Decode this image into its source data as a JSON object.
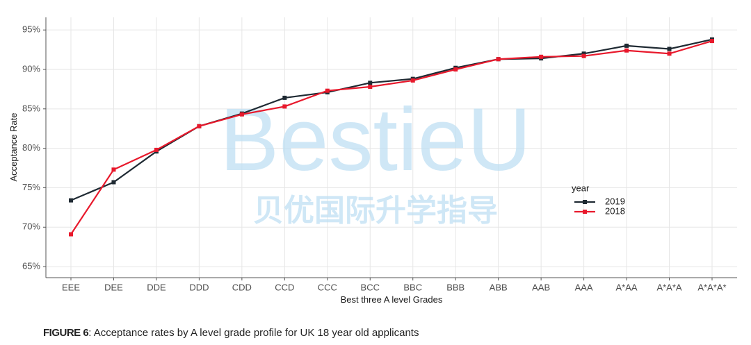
{
  "chart_data": {
    "type": "line",
    "x_label": "Best three A level Grades",
    "y_label": "Acceptance Rate",
    "categories": [
      "EEE",
      "DEE",
      "DDE",
      "DDD",
      "CDD",
      "CCD",
      "CCC",
      "BCC",
      "BBC",
      "BBB",
      "ABB",
      "AAB",
      "AAA",
      "A*AA",
      "A*A*A",
      "A*A*A*"
    ],
    "series": [
      {
        "name": "2019",
        "color": "#1f2a33",
        "values": [
          73.4,
          75.7,
          79.6,
          82.8,
          84.4,
          86.4,
          87.1,
          88.3,
          88.8,
          90.2,
          91.3,
          91.4,
          92.0,
          93.0,
          92.6,
          93.8
        ]
      },
      {
        "name": "2018",
        "color": "#e8192c",
        "values": [
          69.1,
          77.3,
          79.8,
          82.8,
          84.3,
          85.3,
          87.3,
          87.8,
          88.6,
          90.0,
          91.3,
          91.6,
          91.7,
          92.4,
          92.0,
          93.6
        ]
      }
    ],
    "ylim": [
      63.6,
      96.6
    ],
    "yticks": [
      {
        "value": 65,
        "label": "65%"
      },
      {
        "value": 70,
        "label": "70%"
      },
      {
        "value": 75,
        "label": "75%"
      },
      {
        "value": 80,
        "label": "80%"
      },
      {
        "value": 85,
        "label": "85%"
      },
      {
        "value": 90,
        "label": "90%"
      },
      {
        "value": 95,
        "label": "95%"
      }
    ],
    "grid": true,
    "legend_title": "year",
    "legend_position": "right",
    "watermark": "BestieU",
    "watermark_sub": "贝优国际升学指导"
  },
  "caption": {
    "label": "FIGURE 6",
    "text": ": Acceptance rates by A level grade profile for UK 18 year old applicants"
  }
}
